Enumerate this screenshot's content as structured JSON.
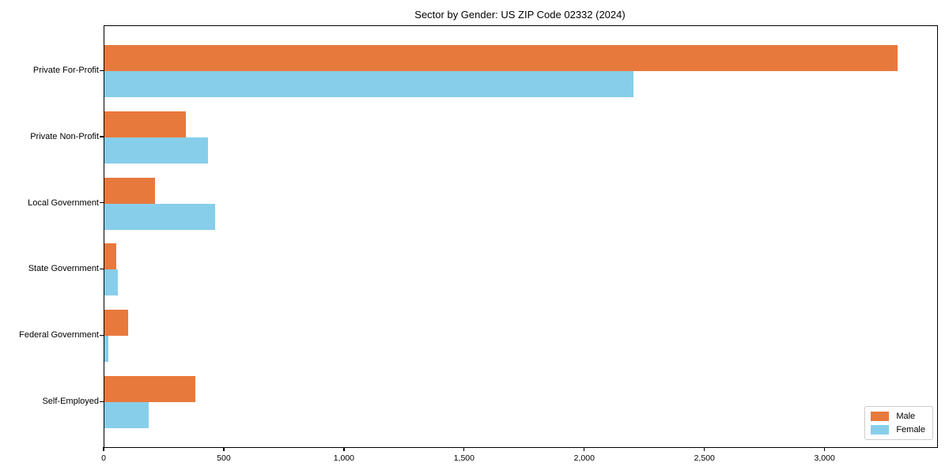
{
  "chart": {
    "title": "Sector by Gender: US ZIP Code 02332 (2024)"
  },
  "chart_data": {
    "type": "bar",
    "orientation": "horizontal",
    "title": "Sector by Gender: US ZIP Code 02332 (2024)",
    "categories": [
      "Private For-Profit",
      "Private Non-Profit",
      "Local Government",
      "State Government",
      "Federal Government",
      "Self-Employed"
    ],
    "series": [
      {
        "name": "Male",
        "color": "#e8793d",
        "values": [
          3300,
          340,
          210,
          50,
          100,
          380
        ]
      },
      {
        "name": "Female",
        "color": "#87ceeb",
        "values": [
          2200,
          430,
          460,
          55,
          15,
          185
        ]
      }
    ],
    "xlabel": "",
    "ylabel": "",
    "xlim": [
      0,
      3465
    ],
    "xticks": [
      0,
      500,
      1000,
      1500,
      2000,
      2500,
      3000
    ],
    "xtick_labels": [
      "0",
      "500",
      "1,000",
      "1,500",
      "2,000",
      "2,500",
      "3,000"
    ],
    "grid": false,
    "legend": {
      "position": "lower right",
      "entries": [
        "Male",
        "Female"
      ]
    },
    "colors": {
      "background": "#ffffff",
      "axis": "#000000",
      "legend_border": "#cccccc"
    }
  }
}
